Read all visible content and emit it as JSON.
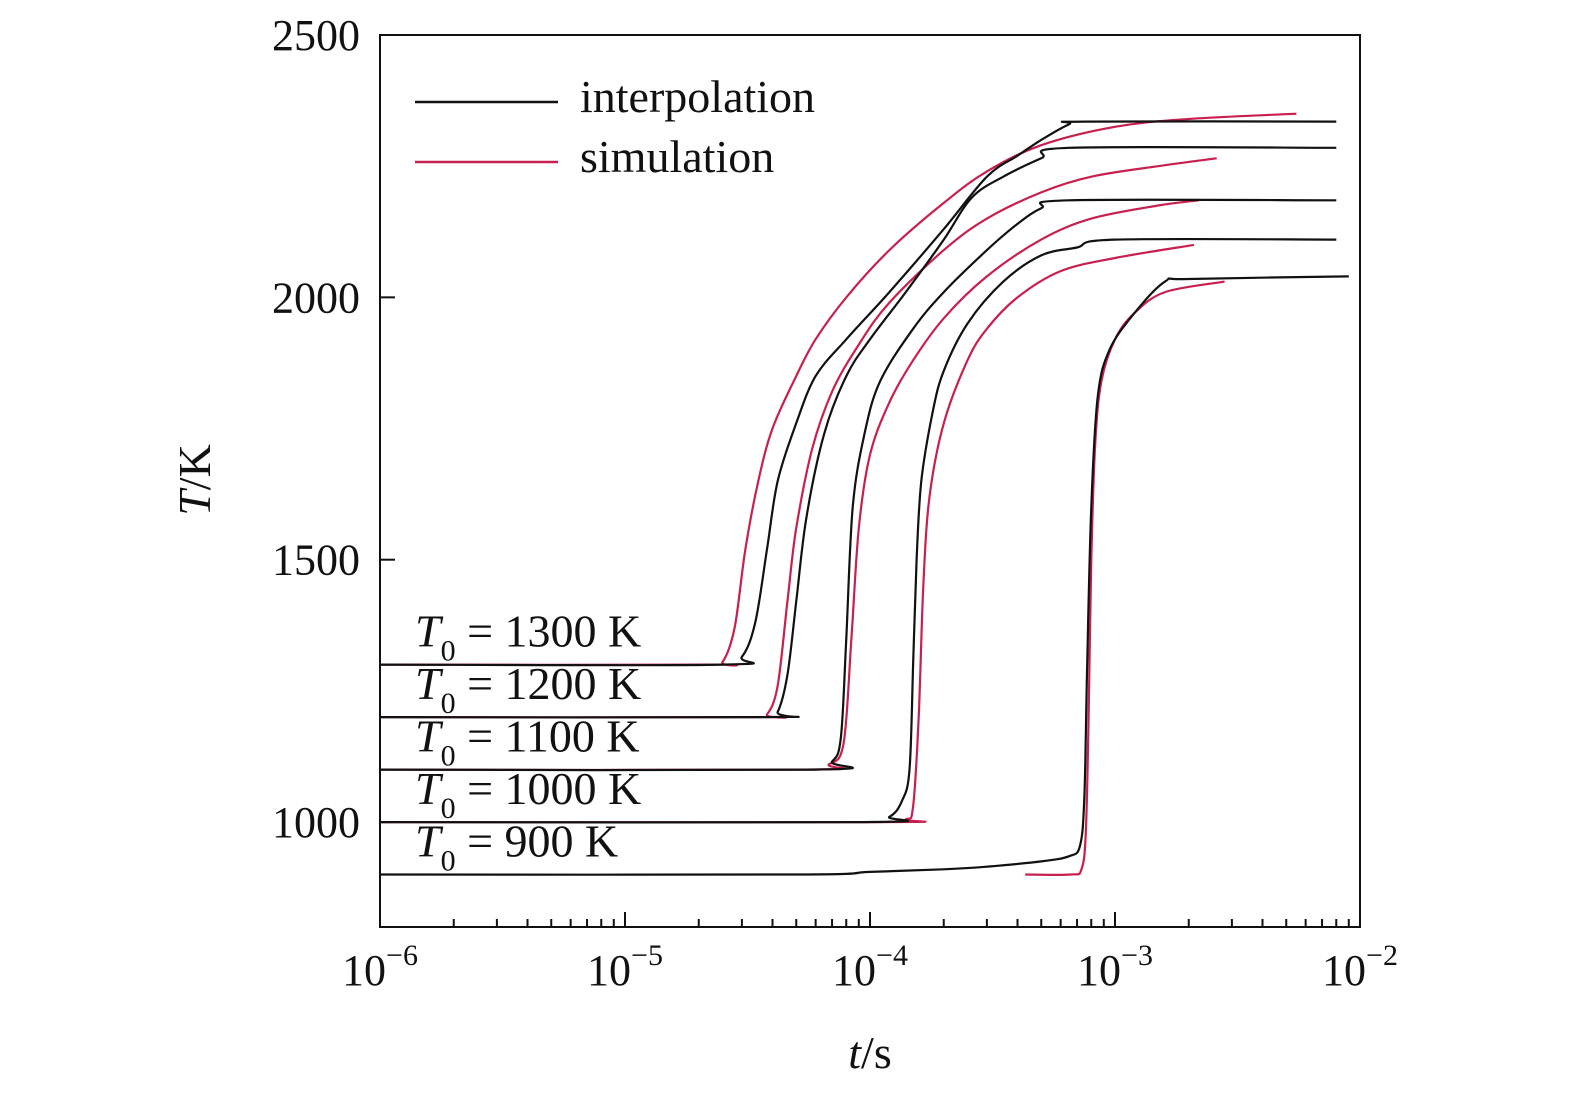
{
  "chart_data": {
    "type": "line",
    "xlabel": {
      "var": "t",
      "unit": "/s"
    },
    "ylabel": {
      "var": "T",
      "unit": "/K"
    },
    "xscale": "log",
    "xlim": [
      1e-06,
      0.01
    ],
    "ylim": [
      800,
      2500
    ],
    "x_ticks": [
      {
        "value": 1e-06,
        "base": "10",
        "exp": "−6"
      },
      {
        "value": 1e-05,
        "base": "10",
        "exp": "−5"
      },
      {
        "value": 0.0001,
        "base": "10",
        "exp": "−4"
      },
      {
        "value": 0.001,
        "base": "10",
        "exp": "−3"
      },
      {
        "value": 0.01,
        "base": "10",
        "exp": "−2"
      }
    ],
    "y_ticks": [
      {
        "value": 1000,
        "label": "1000"
      },
      {
        "value": 1500,
        "label": "1500"
      },
      {
        "value": 2000,
        "label": "2000"
      },
      {
        "value": 2500,
        "label": "2500"
      }
    ],
    "grid": false,
    "legend": {
      "position": "top-left",
      "entries": [
        {
          "key": "interpolation",
          "label": "interpolation",
          "color": "#111111"
        },
        {
          "key": "simulation",
          "label": "simulation",
          "color": "#c8204e"
        }
      ]
    },
    "annotations": [
      {
        "var": "T",
        "sub": "0",
        "rest": " = 1300 K",
        "at_T": 1300
      },
      {
        "var": "T",
        "sub": "0",
        "rest": " = 1200 K",
        "at_T": 1200
      },
      {
        "var": "T",
        "sub": "0",
        "rest": " = 1100 K",
        "at_T": 1100
      },
      {
        "var": "T",
        "sub": "0",
        "rest": " = 1000 K",
        "at_T": 1000
      },
      {
        "var": "T",
        "sub": "0",
        "rest": " = 900 K",
        "at_T": 900
      }
    ],
    "series": [
      {
        "type": "simulation",
        "T0": 1300,
        "color": "#c8204e",
        "points": [
          [
            1e-06,
            1300
          ],
          [
            2.2e-05,
            1300
          ],
          [
            2.5e-05,
            1305
          ],
          [
            2.8e-05,
            1370
          ],
          [
            3.1e-05,
            1520
          ],
          [
            3.5e-05,
            1650
          ],
          [
            4e-05,
            1750
          ],
          [
            5e-05,
            1850
          ],
          [
            6e-05,
            1920
          ],
          [
            8e-05,
            2000
          ],
          [
            0.00012,
            2090
          ],
          [
            0.0002,
            2180
          ],
          [
            0.0003,
            2240
          ],
          [
            0.0005,
            2290
          ],
          [
            0.001,
            2325
          ],
          [
            0.002,
            2340
          ],
          [
            0.0055,
            2350
          ]
        ]
      },
      {
        "type": "interpolation",
        "T0": 1300,
        "color": "#111111",
        "points": [
          [
            1e-06,
            1300
          ],
          [
            2.5e-05,
            1300
          ],
          [
            3e-05,
            1315
          ],
          [
            3.4e-05,
            1380
          ],
          [
            3.8e-05,
            1520
          ],
          [
            4.2e-05,
            1650
          ],
          [
            5e-05,
            1760
          ],
          [
            6e-05,
            1850
          ],
          [
            8e-05,
            1920
          ],
          [
            0.00012,
            2010
          ],
          [
            0.0002,
            2130
          ],
          [
            0.0003,
            2230
          ],
          [
            0.0004,
            2270
          ],
          [
            0.0005,
            2300
          ],
          [
            0.00065,
            2330
          ],
          [
            0.00075,
            2335
          ],
          [
            0.008,
            2335
          ]
        ]
      },
      {
        "type": "simulation",
        "T0": 1200,
        "color": "#c8204e",
        "points": [
          [
            1e-06,
            1200
          ],
          [
            3.4e-05,
            1200
          ],
          [
            3.8e-05,
            1205
          ],
          [
            4.2e-05,
            1260
          ],
          [
            4.6e-05,
            1420
          ],
          [
            5e-05,
            1560
          ],
          [
            5.8e-05,
            1710
          ],
          [
            7e-05,
            1820
          ],
          [
            9e-05,
            1910
          ],
          [
            0.00012,
            1990
          ],
          [
            0.0002,
            2090
          ],
          [
            0.0003,
            2150
          ],
          [
            0.0005,
            2200
          ],
          [
            0.0008,
            2230
          ],
          [
            0.0015,
            2250
          ],
          [
            0.0026,
            2265
          ]
        ]
      },
      {
        "type": "interpolation",
        "T0": 1200,
        "color": "#111111",
        "points": [
          [
            1e-06,
            1200
          ],
          [
            3.8e-05,
            1200
          ],
          [
            4.2e-05,
            1210
          ],
          [
            4.6e-05,
            1280
          ],
          [
            5e-05,
            1420
          ],
          [
            5.5e-05,
            1580
          ],
          [
            6.5e-05,
            1740
          ],
          [
            8e-05,
            1850
          ],
          [
            0.0001,
            1920
          ],
          [
            0.00014,
            2010
          ],
          [
            0.0002,
            2110
          ],
          [
            0.00026,
            2190
          ],
          [
            0.00035,
            2230
          ],
          [
            0.0005,
            2265
          ],
          [
            0.00065,
            2285
          ],
          [
            0.008,
            2285
          ]
        ]
      },
      {
        "type": "simulation",
        "T0": 1100,
        "color": "#c8204e",
        "points": [
          [
            1e-06,
            1100
          ],
          [
            5.5e-05,
            1100
          ],
          [
            6.8e-05,
            1110
          ],
          [
            7.8e-05,
            1150
          ],
          [
            8.4e-05,
            1350
          ],
          [
            9e-05,
            1560
          ],
          [
            0.0001,
            1700
          ],
          [
            0.00012,
            1800
          ],
          [
            0.00015,
            1880
          ],
          [
            0.0002,
            1960
          ],
          [
            0.0003,
            2040
          ],
          [
            0.0005,
            2110
          ],
          [
            0.0008,
            2150
          ],
          [
            0.0015,
            2175
          ],
          [
            0.0022,
            2185
          ]
        ]
      },
      {
        "type": "interpolation",
        "T0": 1100,
        "color": "#111111",
        "points": [
          [
            1e-06,
            1100
          ],
          [
            6e-05,
            1100
          ],
          [
            7e-05,
            1115
          ],
          [
            7.6e-05,
            1160
          ],
          [
            8e-05,
            1350
          ],
          [
            8.5e-05,
            1600
          ],
          [
            9.5e-05,
            1740
          ],
          [
            0.00011,
            1840
          ],
          [
            0.00015,
            1940
          ],
          [
            0.0002,
            2010
          ],
          [
            0.0003,
            2090
          ],
          [
            0.0004,
            2140
          ],
          [
            0.0005,
            2170
          ],
          [
            0.00065,
            2185
          ],
          [
            0.008,
            2185
          ]
        ]
      },
      {
        "type": "simulation",
        "T0": 1000,
        "color": "#c8204e",
        "points": [
          [
            1e-06,
            1000
          ],
          [
            0.00011,
            1000
          ],
          [
            0.00014,
            1005
          ],
          [
            0.00015,
            1030
          ],
          [
            0.000158,
            1200
          ],
          [
            0.000165,
            1450
          ],
          [
            0.000175,
            1620
          ],
          [
            0.0002,
            1760
          ],
          [
            0.00025,
            1880
          ],
          [
            0.0003,
            1940
          ],
          [
            0.0004,
            2000
          ],
          [
            0.0006,
            2050
          ],
          [
            0.001,
            2075
          ],
          [
            0.0021,
            2100
          ]
        ]
      },
      {
        "type": "interpolation",
        "T0": 1000,
        "color": "#111111",
        "points": [
          [
            1e-06,
            1000
          ],
          [
            9.5e-05,
            1000
          ],
          [
            0.00012,
            1010
          ],
          [
            0.000135,
            1040
          ],
          [
            0.000145,
            1100
          ],
          [
            0.00015,
            1300
          ],
          [
            0.000155,
            1500
          ],
          [
            0.000162,
            1650
          ],
          [
            0.00018,
            1780
          ],
          [
            0.0002,
            1860
          ],
          [
            0.00025,
            1950
          ],
          [
            0.00035,
            2030
          ],
          [
            0.0005,
            2080
          ],
          [
            0.0007,
            2095
          ],
          [
            0.001,
            2110
          ],
          [
            0.008,
            2110
          ]
        ]
      },
      {
        "type": "simulation",
        "T0": 900,
        "color": "#c8204e",
        "points": [
          [
            0.00043,
            900
          ],
          [
            0.00066,
            900
          ],
          [
            0.00073,
            910
          ],
          [
            0.00076,
            980
          ],
          [
            0.00078,
            1200
          ],
          [
            0.0008,
            1500
          ],
          [
            0.00083,
            1720
          ],
          [
            0.00088,
            1840
          ],
          [
            0.001,
            1920
          ],
          [
            0.0012,
            1970
          ],
          [
            0.0016,
            2010
          ],
          [
            0.0028,
            2030
          ]
        ]
      },
      {
        "type": "interpolation",
        "T0": 900,
        "color": "#111111",
        "points": [
          [
            1e-06,
            900
          ],
          [
            5e-05,
            900
          ],
          [
            0.0001,
            905
          ],
          [
            0.0002,
            910
          ],
          [
            0.0003,
            915
          ],
          [
            0.0005,
            925
          ],
          [
            0.00065,
            935
          ],
          [
            0.00072,
            955
          ],
          [
            0.00075,
            1050
          ],
          [
            0.00077,
            1300
          ],
          [
            0.0008,
            1600
          ],
          [
            0.00085,
            1810
          ],
          [
            0.00095,
            1900
          ],
          [
            0.0012,
            1970
          ],
          [
            0.0016,
            2030
          ],
          [
            0.002,
            2035
          ],
          [
            0.009,
            2040
          ]
        ]
      }
    ]
  }
}
